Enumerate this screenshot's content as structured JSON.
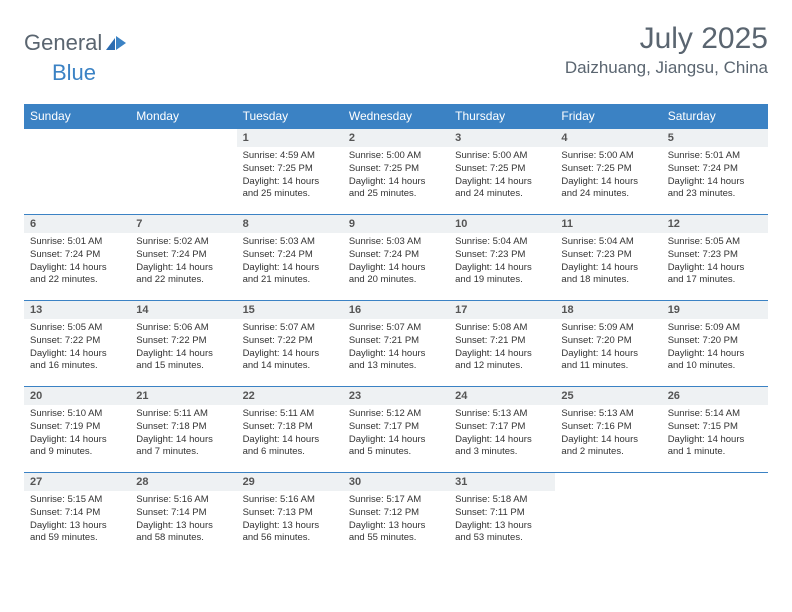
{
  "brand": {
    "part1": "General",
    "part2": "Blue"
  },
  "title": "July 2025",
  "location": "Daizhuang, Jiangsu, China",
  "colors": {
    "header_bg": "#3b82c4",
    "header_text": "#ffffff",
    "daynum_bg": "#eef1f3",
    "border": "#3b82c4",
    "text": "#333333",
    "muted": "#5a6570"
  },
  "day_labels": [
    "Sunday",
    "Monday",
    "Tuesday",
    "Wednesday",
    "Thursday",
    "Friday",
    "Saturday"
  ],
  "weeks": [
    [
      null,
      null,
      {
        "n": "1",
        "sr": "Sunrise: 4:59 AM",
        "ss": "Sunset: 7:25 PM",
        "d1": "Daylight: 14 hours",
        "d2": "and 25 minutes."
      },
      {
        "n": "2",
        "sr": "Sunrise: 5:00 AM",
        "ss": "Sunset: 7:25 PM",
        "d1": "Daylight: 14 hours",
        "d2": "and 25 minutes."
      },
      {
        "n": "3",
        "sr": "Sunrise: 5:00 AM",
        "ss": "Sunset: 7:25 PM",
        "d1": "Daylight: 14 hours",
        "d2": "and 24 minutes."
      },
      {
        "n": "4",
        "sr": "Sunrise: 5:00 AM",
        "ss": "Sunset: 7:25 PM",
        "d1": "Daylight: 14 hours",
        "d2": "and 24 minutes."
      },
      {
        "n": "5",
        "sr": "Sunrise: 5:01 AM",
        "ss": "Sunset: 7:24 PM",
        "d1": "Daylight: 14 hours",
        "d2": "and 23 minutes."
      }
    ],
    [
      {
        "n": "6",
        "sr": "Sunrise: 5:01 AM",
        "ss": "Sunset: 7:24 PM",
        "d1": "Daylight: 14 hours",
        "d2": "and 22 minutes."
      },
      {
        "n": "7",
        "sr": "Sunrise: 5:02 AM",
        "ss": "Sunset: 7:24 PM",
        "d1": "Daylight: 14 hours",
        "d2": "and 22 minutes."
      },
      {
        "n": "8",
        "sr": "Sunrise: 5:03 AM",
        "ss": "Sunset: 7:24 PM",
        "d1": "Daylight: 14 hours",
        "d2": "and 21 minutes."
      },
      {
        "n": "9",
        "sr": "Sunrise: 5:03 AM",
        "ss": "Sunset: 7:24 PM",
        "d1": "Daylight: 14 hours",
        "d2": "and 20 minutes."
      },
      {
        "n": "10",
        "sr": "Sunrise: 5:04 AM",
        "ss": "Sunset: 7:23 PM",
        "d1": "Daylight: 14 hours",
        "d2": "and 19 minutes."
      },
      {
        "n": "11",
        "sr": "Sunrise: 5:04 AM",
        "ss": "Sunset: 7:23 PM",
        "d1": "Daylight: 14 hours",
        "d2": "and 18 minutes."
      },
      {
        "n": "12",
        "sr": "Sunrise: 5:05 AM",
        "ss": "Sunset: 7:23 PM",
        "d1": "Daylight: 14 hours",
        "d2": "and 17 minutes."
      }
    ],
    [
      {
        "n": "13",
        "sr": "Sunrise: 5:05 AM",
        "ss": "Sunset: 7:22 PM",
        "d1": "Daylight: 14 hours",
        "d2": "and 16 minutes."
      },
      {
        "n": "14",
        "sr": "Sunrise: 5:06 AM",
        "ss": "Sunset: 7:22 PM",
        "d1": "Daylight: 14 hours",
        "d2": "and 15 minutes."
      },
      {
        "n": "15",
        "sr": "Sunrise: 5:07 AM",
        "ss": "Sunset: 7:22 PM",
        "d1": "Daylight: 14 hours",
        "d2": "and 14 minutes."
      },
      {
        "n": "16",
        "sr": "Sunrise: 5:07 AM",
        "ss": "Sunset: 7:21 PM",
        "d1": "Daylight: 14 hours",
        "d2": "and 13 minutes."
      },
      {
        "n": "17",
        "sr": "Sunrise: 5:08 AM",
        "ss": "Sunset: 7:21 PM",
        "d1": "Daylight: 14 hours",
        "d2": "and 12 minutes."
      },
      {
        "n": "18",
        "sr": "Sunrise: 5:09 AM",
        "ss": "Sunset: 7:20 PM",
        "d1": "Daylight: 14 hours",
        "d2": "and 11 minutes."
      },
      {
        "n": "19",
        "sr": "Sunrise: 5:09 AM",
        "ss": "Sunset: 7:20 PM",
        "d1": "Daylight: 14 hours",
        "d2": "and 10 minutes."
      }
    ],
    [
      {
        "n": "20",
        "sr": "Sunrise: 5:10 AM",
        "ss": "Sunset: 7:19 PM",
        "d1": "Daylight: 14 hours",
        "d2": "and 9 minutes."
      },
      {
        "n": "21",
        "sr": "Sunrise: 5:11 AM",
        "ss": "Sunset: 7:18 PM",
        "d1": "Daylight: 14 hours",
        "d2": "and 7 minutes."
      },
      {
        "n": "22",
        "sr": "Sunrise: 5:11 AM",
        "ss": "Sunset: 7:18 PM",
        "d1": "Daylight: 14 hours",
        "d2": "and 6 minutes."
      },
      {
        "n": "23",
        "sr": "Sunrise: 5:12 AM",
        "ss": "Sunset: 7:17 PM",
        "d1": "Daylight: 14 hours",
        "d2": "and 5 minutes."
      },
      {
        "n": "24",
        "sr": "Sunrise: 5:13 AM",
        "ss": "Sunset: 7:17 PM",
        "d1": "Daylight: 14 hours",
        "d2": "and 3 minutes."
      },
      {
        "n": "25",
        "sr": "Sunrise: 5:13 AM",
        "ss": "Sunset: 7:16 PM",
        "d1": "Daylight: 14 hours",
        "d2": "and 2 minutes."
      },
      {
        "n": "26",
        "sr": "Sunrise: 5:14 AM",
        "ss": "Sunset: 7:15 PM",
        "d1": "Daylight: 14 hours",
        "d2": "and 1 minute."
      }
    ],
    [
      {
        "n": "27",
        "sr": "Sunrise: 5:15 AM",
        "ss": "Sunset: 7:14 PM",
        "d1": "Daylight: 13 hours",
        "d2": "and 59 minutes."
      },
      {
        "n": "28",
        "sr": "Sunrise: 5:16 AM",
        "ss": "Sunset: 7:14 PM",
        "d1": "Daylight: 13 hours",
        "d2": "and 58 minutes."
      },
      {
        "n": "29",
        "sr": "Sunrise: 5:16 AM",
        "ss": "Sunset: 7:13 PM",
        "d1": "Daylight: 13 hours",
        "d2": "and 56 minutes."
      },
      {
        "n": "30",
        "sr": "Sunrise: 5:17 AM",
        "ss": "Sunset: 7:12 PM",
        "d1": "Daylight: 13 hours",
        "d2": "and 55 minutes."
      },
      {
        "n": "31",
        "sr": "Sunrise: 5:18 AM",
        "ss": "Sunset: 7:11 PM",
        "d1": "Daylight: 13 hours",
        "d2": "and 53 minutes."
      },
      null,
      null
    ]
  ]
}
